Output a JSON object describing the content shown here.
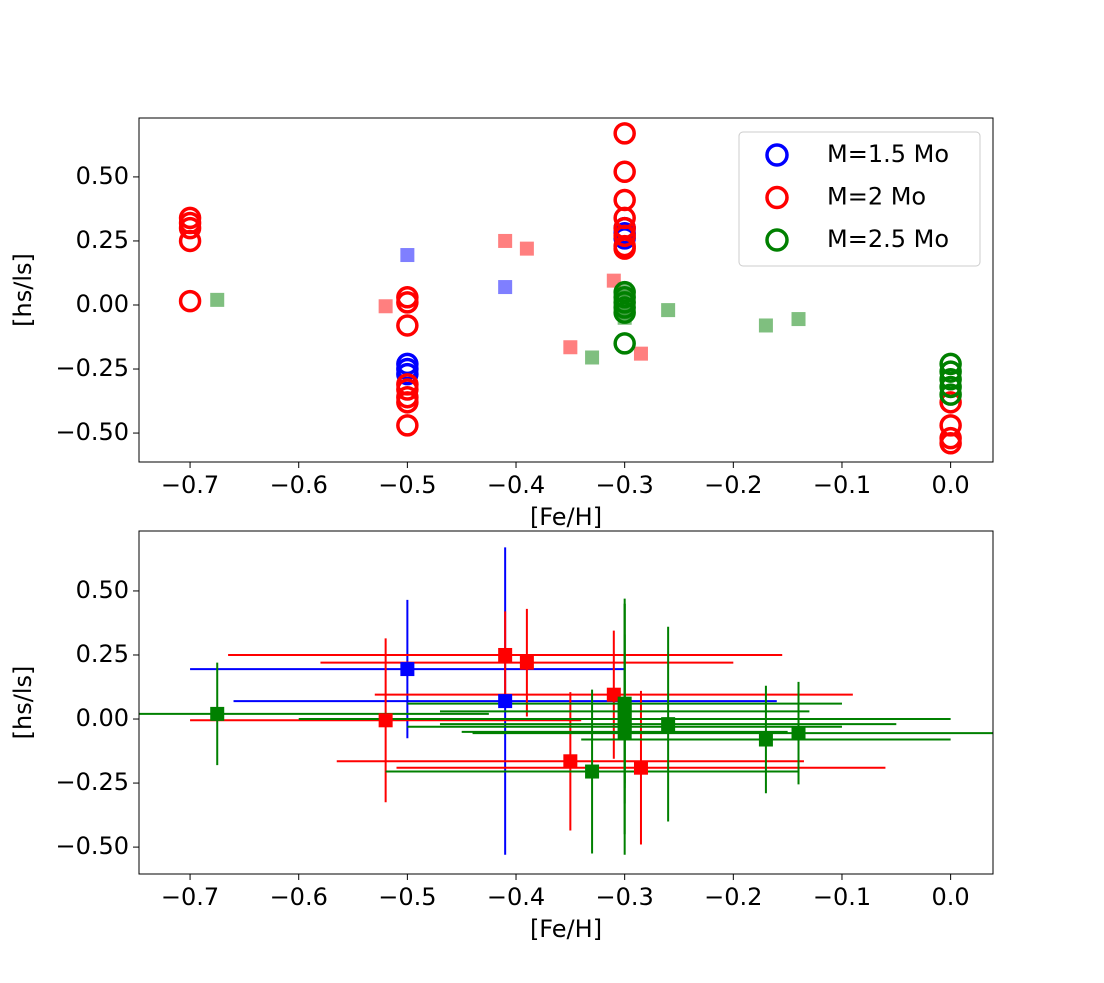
{
  "chart_data": [
    {
      "type": "scatter",
      "xlabel": "[Fe/H]",
      "ylabel": "[hs/ls]",
      "xlim": [
        -0.747,
        0.039
      ],
      "ylim": [
        -0.613,
        0.73
      ],
      "xticks": [
        {
          "value": -0.7,
          "label": "−0.7"
        },
        {
          "value": -0.6,
          "label": "−0.6"
        },
        {
          "value": -0.5,
          "label": "−0.5"
        },
        {
          "value": -0.4,
          "label": "−0.4"
        },
        {
          "value": -0.3,
          "label": "−0.3"
        },
        {
          "value": -0.2,
          "label": "−0.2"
        },
        {
          "value": -0.1,
          "label": "−0.1"
        },
        {
          "value": 0,
          "label": "0.0"
        }
      ],
      "yticks": [
        {
          "value": -0.5,
          "label": "−0.50"
        },
        {
          "value": -0.25,
          "label": "−0.25"
        },
        {
          "value": 0,
          "label": "0.00"
        },
        {
          "value": 0.25,
          "label": "0.25"
        },
        {
          "value": 0.5,
          "label": "0.50"
        }
      ],
      "legend": "upper right",
      "series": [
        {
          "name": "M=1.5 Mo",
          "color": "#0000ff",
          "marker": "circle",
          "x": [
            -0.5,
            -0.5,
            -0.5,
            -0.3,
            -0.3,
            -0.3
          ],
          "values": [
            -0.23,
            -0.25,
            -0.27,
            0.3,
            0.28,
            0.26
          ]
        },
        {
          "name": "M=2 Mo",
          "color": "#ff0000",
          "marker": "circle",
          "x": [
            -0.7,
            -0.7,
            -0.7,
            -0.7,
            -0.7,
            -0.5,
            -0.5,
            -0.5,
            -0.5,
            -0.5,
            -0.5,
            -0.5,
            -0.5,
            -0.3,
            -0.3,
            -0.3,
            -0.3,
            -0.3,
            -0.3,
            -0.3,
            -0.3,
            0,
            0,
            0,
            0
          ],
          "values": [
            0.34,
            0.32,
            0.3,
            0.25,
            0.015,
            0.03,
            0.01,
            -0.08,
            -0.31,
            -0.33,
            -0.36,
            -0.38,
            -0.47,
            0.67,
            0.52,
            0.41,
            0.34,
            0.3,
            0.27,
            0.23,
            0.22,
            -0.38,
            -0.47,
            -0.52,
            -0.54
          ]
        },
        {
          "name": "M=2.5 Mo",
          "color": "#008000",
          "marker": "circle",
          "x": [
            -0.3,
            -0.3,
            -0.3,
            -0.3,
            -0.3,
            -0.3,
            0,
            0,
            0,
            0,
            0
          ],
          "values": [
            0.05,
            0.03,
            0.01,
            -0.01,
            -0.03,
            -0.15,
            -0.23,
            -0.26,
            -0.29,
            -0.32,
            -0.35
          ]
        }
      ],
      "observations": [
        {
          "color": "#0000ff",
          "marker": "square",
          "alpha": 0.5,
          "x": [
            -0.5,
            -0.41
          ],
          "values": [
            0.195,
            0.07
          ]
        },
        {
          "color": "#ff0000",
          "marker": "square",
          "alpha": 0.5,
          "x": [
            -0.52,
            -0.41,
            -0.39,
            -0.31,
            -0.35,
            -0.285
          ],
          "values": [
            -0.005,
            0.25,
            0.22,
            0.095,
            -0.165,
            -0.19
          ]
        },
        {
          "color": "#008000",
          "marker": "square",
          "alpha": 0.5,
          "x": [
            -0.675,
            -0.33,
            -0.26,
            -0.17,
            -0.14,
            -0.3,
            -0.3,
            -0.3,
            -0.3,
            -0.3
          ],
          "values": [
            0.02,
            -0.205,
            -0.02,
            -0.08,
            -0.055,
            0.06,
            0.03,
            0.0,
            -0.03,
            -0.05
          ]
        }
      ]
    },
    {
      "type": "errorbar",
      "xlabel": "[Fe/H]",
      "ylabel": "[hs/ls]",
      "xlim": [
        -0.747,
        0.039
      ],
      "ylim": [
        -0.605,
        0.734
      ],
      "xticks": [
        {
          "value": -0.7,
          "label": "−0.7"
        },
        {
          "value": -0.6,
          "label": "−0.6"
        },
        {
          "value": -0.5,
          "label": "−0.5"
        },
        {
          "value": -0.4,
          "label": "−0.4"
        },
        {
          "value": -0.3,
          "label": "−0.3"
        },
        {
          "value": -0.2,
          "label": "−0.2"
        },
        {
          "value": -0.1,
          "label": "−0.1"
        },
        {
          "value": 0,
          "label": "0.0"
        }
      ],
      "yticks": [
        {
          "value": -0.5,
          "label": "−0.50"
        },
        {
          "value": -0.25,
          "label": "−0.25"
        },
        {
          "value": 0,
          "label": "0.00"
        },
        {
          "value": 0.25,
          "label": "0.25"
        },
        {
          "value": 0.5,
          "label": "0.50"
        }
      ],
      "series": [
        {
          "color": "#0000ff",
          "marker": "square",
          "x": [
            -0.5,
            -0.41
          ],
          "values": [
            0.195,
            0.07
          ],
          "xerr": [
            0.2,
            0.25
          ],
          "yerr": [
            0.27,
            0.6
          ]
        },
        {
          "color": "#ff0000",
          "marker": "square",
          "x": [
            -0.52,
            -0.41,
            -0.39,
            -0.31,
            -0.35,
            -0.285
          ],
          "values": [
            -0.005,
            0.25,
            0.22,
            0.095,
            -0.165,
            -0.19
          ],
          "xerr": [
            0.18,
            0.255,
            0.19,
            0.22,
            0.215,
            0.225
          ],
          "yerr": [
            0.32,
            0.17,
            0.21,
            0.25,
            0.27,
            0.3
          ]
        },
        {
          "color": "#008000",
          "marker": "square",
          "x": [
            -0.675,
            -0.33,
            -0.26,
            -0.17,
            -0.14,
            -0.3,
            -0.3,
            -0.3,
            -0.3,
            -0.3
          ],
          "values": [
            0.02,
            -0.205,
            -0.02,
            -0.08,
            -0.055,
            0.06,
            0.03,
            0.0,
            -0.03,
            -0.05
          ],
          "xerr": [
            0.25,
            0.19,
            0.21,
            0.17,
            0.3,
            0.2,
            0.17,
            0.3,
            0.2,
            0.15
          ],
          "yerr": [
            0.2,
            0.32,
            0.38,
            0.21,
            0.2,
            0.39,
            0.3,
            0.45,
            0.5,
            0.2
          ]
        }
      ]
    }
  ]
}
